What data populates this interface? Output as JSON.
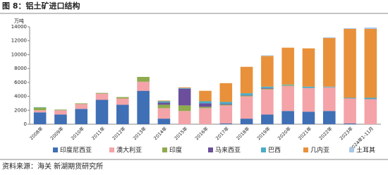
{
  "chart_data": {
    "type": "stacked-bar",
    "title": "图 8：铝土矿进口结构",
    "y_label": "万吨",
    "source": "资料来源：海关  新湖期货研究所",
    "categories": [
      "2008年",
      "2009年",
      "2010年",
      "2011年",
      "2012年",
      "2013年",
      "2014年",
      "2015年",
      "2016年",
      "2017年",
      "2018年",
      "2019年",
      "2020年",
      "2021年",
      "2022年",
      "2023年",
      "2024年1-11月"
    ],
    "series": [
      {
        "name": "印度尼西亚",
        "color": "#3f6fb5",
        "values": [
          1700,
          1400,
          2200,
          3500,
          2800,
          4800,
          800,
          0,
          0,
          100,
          800,
          1400,
          1900,
          1800,
          1900,
          100,
          0
        ]
      },
      {
        "name": "澳大利亚",
        "color": "#f4a3a8",
        "values": [
          300,
          600,
          700,
          900,
          900,
          1300,
          1500,
          1900,
          2300,
          2600,
          3200,
          3600,
          3600,
          3400,
          3400,
          3600,
          3600
        ]
      },
      {
        "name": "印度",
        "color": "#8fab4d",
        "values": [
          400,
          100,
          100,
          100,
          200,
          700,
          500,
          800,
          200,
          100,
          100,
          100,
          100,
          0,
          0,
          0,
          0
        ]
      },
      {
        "name": "马来西亚",
        "color": "#6b4f9c",
        "values": [
          0,
          0,
          0,
          0,
          0,
          0,
          300,
          2400,
          500,
          100,
          50,
          100,
          0,
          0,
          0,
          0,
          0
        ]
      },
      {
        "name": "巴西",
        "color": "#4bacc6",
        "values": [
          50,
          0,
          0,
          0,
          0,
          0,
          200,
          100,
          300,
          300,
          300,
          200,
          100,
          200,
          100,
          100,
          200
        ]
      },
      {
        "name": "几内亚",
        "color": "#e8913a",
        "values": [
          0,
          0,
          0,
          0,
          0,
          0,
          100,
          100,
          1500,
          2700,
          3800,
          4400,
          5300,
          5500,
          7000,
          9900,
          9900
        ]
      },
      {
        "name": "土耳其",
        "color": "#a9c8e8",
        "values": [
          0,
          0,
          0,
          0,
          0,
          0,
          0,
          0,
          0,
          0,
          0,
          100,
          0,
          0,
          100,
          100,
          200
        ]
      }
    ],
    "ylim": [
      0,
      14000
    ],
    "yticks": [
      0,
      2000,
      4000,
      6000,
      8000,
      10000,
      12000,
      14000
    ],
    "grid": false
  }
}
